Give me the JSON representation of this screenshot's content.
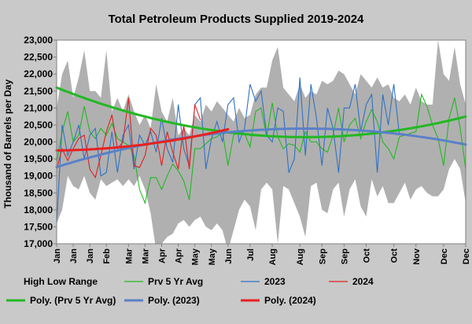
{
  "chart_data": {
    "type": "line",
    "title": "Total Petroleum Products Supplied  2019-2024",
    "ylabel": "Thousand of Barrels per Day",
    "xlabel": "",
    "ylim": [
      17000,
      23000
    ],
    "ytick_step": 500,
    "y_tick_labels": [
      "17,000",
      "17,500",
      "18,000",
      "18,500",
      "19,000",
      "19,500",
      "20,000",
      "20,500",
      "21,000",
      "21,500",
      "22,000",
      "22,500",
      "23,000"
    ],
    "x_tick_labels": [
      "Jan",
      "Jan",
      "Jan",
      "Feb",
      "Mar",
      "Mar",
      "Apr",
      "Apr",
      "May",
      "May",
      "Jun",
      "Jul",
      "Aug",
      "Aug",
      "Sep",
      "Sep",
      "Oct",
      "Oct",
      "Nov",
      "Dec",
      "Dec"
    ],
    "x_tick_weeks": [
      0,
      3,
      6,
      9,
      13,
      16,
      19,
      22,
      25,
      28,
      31,
      35,
      39,
      44,
      48,
      52,
      56,
      61,
      65,
      70,
      74
    ],
    "x_week_range": [
      0,
      74
    ],
    "grid": false,
    "legend_placement": "bottom",
    "colors": {
      "range": "#b0b0b0",
      "prv5": "#22b822",
      "y2023": "#2f72c4",
      "y2024": "#e02020",
      "poly_prv5": "#22b822",
      "poly2023": "#5a80c8",
      "poly2024": "#e82020"
    },
    "legend": [
      {
        "key": "range",
        "label": "High Low Range",
        "style": "none"
      },
      {
        "key": "prv5",
        "label": "Prv 5 Yr Avg",
        "style": "thin"
      },
      {
        "key": "y2023",
        "label": "2023",
        "style": "thin"
      },
      {
        "key": "y2024",
        "label": "2024",
        "style": "thin"
      },
      {
        "key": "poly_prv5",
        "label": "Poly. (Prv 5 Yr Avg)",
        "style": "thick"
      },
      {
        "key": "poly2023",
        "label": "Poly. (2023)",
        "style": "thick"
      },
      {
        "key": "poly2024",
        "label": "Poly. (2024)",
        "style": "thick"
      }
    ],
    "range_high": [
      21000,
      22000,
      22400,
      21300,
      21900,
      22700,
      21500,
      21500,
      21300,
      22700,
      20900,
      21300,
      20900,
      21400,
      20900,
      20500,
      20800,
      20400,
      21700,
      20900,
      20600,
      21300,
      20200,
      20400,
      20200,
      20800,
      20600,
      21100,
      20900,
      21200,
      21000,
      20800,
      20600,
      21000,
      20700,
      20800,
      21400,
      21600,
      21600,
      22400,
      22800,
      21600,
      21400,
      21200,
      21700,
      21300,
      21500,
      21400,
      21800,
      21700,
      21800,
      22100,
      22000,
      21700,
      21400,
      22000,
      21800,
      21600,
      21900,
      21600,
      21700,
      21300,
      21200,
      21400,
      21100,
      21600,
      21200,
      21100,
      21100,
      23000,
      22000,
      21800,
      22800,
      21700,
      21100
    ],
    "range_low": [
      17600,
      18000,
      19000,
      18700,
      18600,
      19000,
      18500,
      18300,
      18900,
      18700,
      18800,
      18900,
      18700,
      18900,
      18700,
      19000,
      18600,
      17900,
      16800,
      17000,
      17200,
      17300,
      17600,
      17700,
      17500,
      17700,
      17800,
      17500,
      17400,
      17600,
      17400,
      16800,
      17400,
      18000,
      18300,
      18100,
      17400,
      18600,
      18800,
      18600,
      17000,
      18700,
      18600,
      18200,
      17800,
      17200,
      18700,
      18800,
      18000,
      17900,
      18600,
      18800,
      17800,
      18600,
      18900,
      18100,
      17800,
      18900,
      18400,
      18700,
      18200,
      18200,
      18500,
      18800,
      18300,
      18600,
      18700,
      18500,
      18400,
      18400,
      18600,
      19200,
      19500,
      19200,
      18200
    ],
    "series": [
      {
        "key": "prv5",
        "name": "Prv 5 Yr Avg",
        "values": [
          19400,
          20300,
          20900,
          20000,
          20200,
          21050,
          20300,
          20100,
          20400,
          20200,
          20550,
          20100,
          20000,
          19900,
          19600,
          18600,
          18200,
          18950,
          18950,
          18600,
          19000,
          19350,
          19150,
          18850,
          18300,
          19800,
          19800,
          19950,
          20100,
          20150,
          20300,
          19300,
          20200,
          20300,
          20250,
          19850,
          20900,
          21000,
          20150,
          21150,
          20150,
          19800,
          19950,
          19900,
          19700,
          20300,
          20000,
          20000,
          19800,
          19700,
          20200,
          21000,
          20000,
          20500,
          20700,
          20100,
          20600,
          20950,
          20600,
          20000,
          19800,
          19500,
          20150,
          20200,
          20250,
          20300,
          21400,
          21050,
          20500,
          20100,
          19300,
          20700,
          21300,
          20400,
          19200
        ]
      },
      {
        "key": "y2023",
        "name": "2023",
        "values": [
          17600,
          20500,
          19600,
          20000,
          20500,
          19500,
          20200,
          20400,
          19000,
          19100,
          20300,
          19100,
          20200,
          20500,
          19200,
          20200,
          19900,
          20300,
          19700,
          20700,
          19800,
          19400,
          21100,
          19800,
          19300,
          21100,
          21300,
          19200,
          20100,
          20600,
          20000,
          21100,
          21300,
          20000,
          20400,
          21700,
          21200,
          21500,
          20200,
          20000,
          21000,
          20900,
          19100,
          19500,
          21900,
          19600,
          21700,
          20700,
          19300,
          21000,
          20400,
          19100,
          21000,
          21000,
          21700,
          20300,
          21100,
          21400,
          19100,
          21400,
          20500,
          21700,
          20200
        ]
      },
      {
        "key": "y2024",
        "name": "2024",
        "values": [
          19200,
          19800,
          19450,
          19800,
          20100,
          20200,
          19200,
          18950,
          19600,
          20300,
          20800,
          19800,
          20000,
          21300,
          19300,
          19250,
          19600,
          20400,
          20200,
          19300,
          20300,
          19700,
          19200,
          20500,
          19200,
          21100,
          20650
        ]
      }
    ],
    "poly_series": [
      {
        "key": "poly_prv5",
        "name": "Poly. (Prv 5 Yr Avg)",
        "a": 0.72,
        "b": -64.8,
        "c": 21600,
        "w_start": 0,
        "w_end": 74
      },
      {
        "key": "poly2023",
        "name": "Poly. (2023)",
        "a": -0.56,
        "b": 50.4,
        "c": 19260,
        "w_start": 0,
        "w_end": 74
      },
      {
        "key": "poly2024",
        "name": "Poly. (2024)",
        "a": 0.6,
        "b": 1.5,
        "c": 19750,
        "w_start": 0,
        "w_end": 31
      }
    ]
  }
}
